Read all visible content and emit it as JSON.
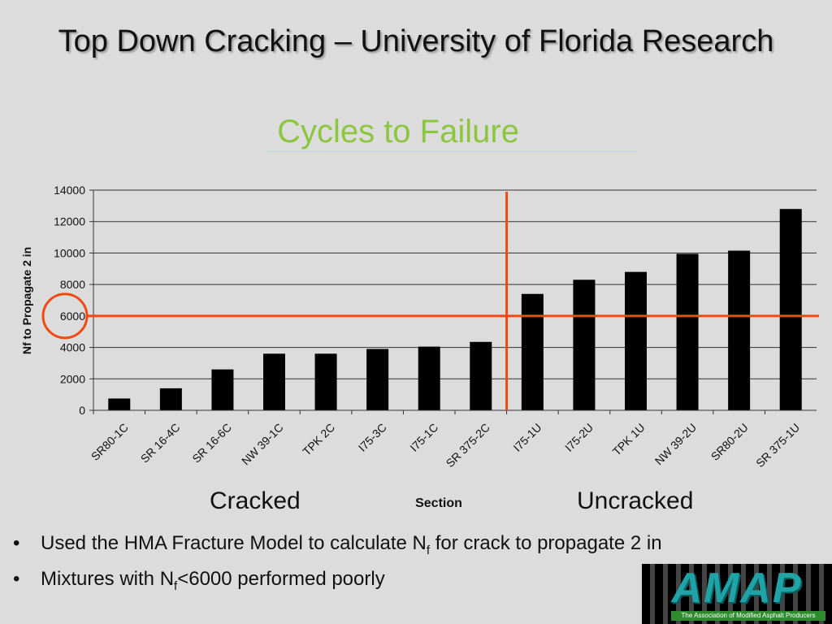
{
  "slide": {
    "title": "Top Down Cracking – University of Florida Research",
    "bullets": [
      {
        "pre": "Used the HMA Fracture Model to calculate N",
        "sub": "f",
        "post": " for crack to propagate 2 in"
      },
      {
        "pre": "Mixtures with N",
        "sub": "f",
        "post": "<6000 performed poorly"
      }
    ],
    "group_labels": {
      "left": "Cracked",
      "right": "Uncracked"
    },
    "logo": {
      "wordmark": "AMAP",
      "tagline": "The Association of Modified Asphalt Producers"
    }
  },
  "chart_data": {
    "type": "bar",
    "title": "Cycles to Failure",
    "xlabel": "Section",
    "ylabel": "Nf to Propagate 2 in",
    "categories": [
      "SR80-1C",
      "SR 16-4C",
      "SR 16-6C",
      "NW 39-1C",
      "TPK 2C",
      "I75-3C",
      "I75-1C",
      "SR 375-2C",
      "I75-1U",
      "I75-2U",
      "TPK 1U",
      "NW 39-2U",
      "SR80-2U",
      "SR 375-1U"
    ],
    "values": [
      750,
      1400,
      2600,
      3600,
      3600,
      3900,
      4050,
      4350,
      7400,
      8300,
      8800,
      9950,
      10150,
      12800
    ],
    "ylim": [
      0,
      14000
    ],
    "yticks": [
      0,
      2000,
      4000,
      6000,
      8000,
      10000,
      12000,
      14000
    ],
    "threshold": 6000,
    "bar_color": "#000000",
    "threshold_color": "#f04a12",
    "highlight_circle_value": 6000,
    "grid": true
  }
}
